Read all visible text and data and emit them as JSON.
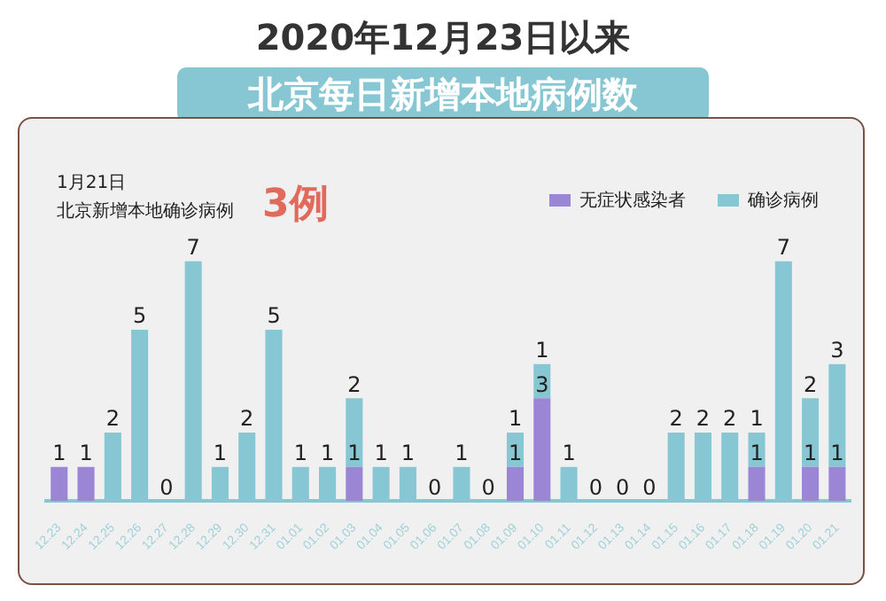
{
  "chart_data": {
    "type": "bar",
    "title": "2020年12月23日以来",
    "subtitle": "北京每日新增本地病例数",
    "annotations": [
      "1月21日",
      "北京新增本地确诊病例",
      "3例"
    ],
    "categories": [
      "12.23",
      "12.24",
      "12.25",
      "12.26",
      "12.27",
      "12.28",
      "12.29",
      "12.30",
      "12.31",
      "01.01",
      "01.02",
      "01.03",
      "01.04",
      "01.05",
      "01.06",
      "01.07",
      "01.08",
      "01.09",
      "01.10",
      "01.11",
      "01.12",
      "01.13",
      "01.14",
      "01.15",
      "01.16",
      "01.17",
      "01.18",
      "01.19",
      "01.20",
      "01.21"
    ],
    "stacked": true,
    "legend": "top right",
    "grid": false,
    "series": [
      {
        "name": "无症状感染者",
        "color": "#9b86d6",
        "values": [
          1,
          1,
          0,
          0,
          0,
          0,
          0,
          0,
          0,
          0,
          0,
          1,
          0,
          0,
          0,
          0,
          0,
          1,
          3,
          0,
          0,
          0,
          0,
          0,
          0,
          0,
          1,
          0,
          1,
          1
        ],
        "value_labels": [
          "1",
          "1",
          null,
          null,
          null,
          null,
          null,
          null,
          null,
          null,
          null,
          "1",
          null,
          null,
          null,
          null,
          null,
          "1",
          "3",
          null,
          null,
          null,
          null,
          null,
          null,
          null,
          "1",
          null,
          "1",
          "1"
        ]
      },
      {
        "name": "确诊病例",
        "color": "#86c7d3",
        "values": [
          0,
          0,
          2,
          5,
          0,
          7,
          1,
          2,
          5,
          1,
          1,
          2,
          1,
          1,
          0,
          1,
          0,
          1,
          1,
          1,
          0,
          0,
          0,
          2,
          2,
          2,
          1,
          7,
          2,
          3
        ],
        "value_labels": [
          null,
          null,
          "2",
          "5",
          "0",
          "7",
          "1",
          "2",
          "5",
          "1",
          "1",
          "2",
          "1",
          "1",
          "0",
          "1",
          "0",
          "1",
          "1",
          "1",
          "0",
          "0",
          "0",
          "2",
          "2",
          "2",
          "1",
          "7",
          "2",
          "3"
        ]
      }
    ]
  }
}
